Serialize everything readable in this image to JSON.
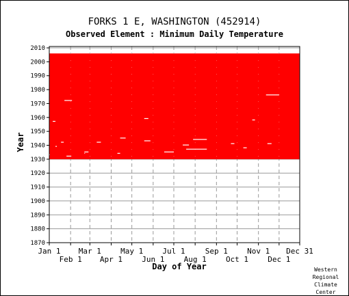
{
  "title": "FORKS 1 E, WASHINGTON   (452914)",
  "subtitle": "Observed Element : Minimum Daily Temperature",
  "credit": [
    "Western",
    "Regional",
    "Climate",
    "Center"
  ],
  "colors": {
    "data": "#ff0000",
    "grid": "#999999",
    "axis": "#000000"
  },
  "chart_data": {
    "type": "heatmap",
    "title": "FORKS 1 E, WASHINGTON   (452914)",
    "subtitle": "Observed Element : Minimum Daily Temperature",
    "xlabel": "Day of Year",
    "ylabel": "Year",
    "x_ticks_top_row": [
      "Jan 1",
      "Mar 1",
      "May 1",
      "Jul 1",
      "Sep 1",
      "Nov 1",
      "Dec 31"
    ],
    "x_ticks_bottom_row": [
      "Feb 1",
      "Apr 1",
      "Jun 1",
      "Aug 1",
      "Oct 1",
      "Dec 1"
    ],
    "x_tick_days": [
      1,
      32,
      60,
      91,
      121,
      152,
      182,
      213,
      244,
      274,
      305,
      335,
      365
    ],
    "x_range": [
      1,
      365
    ],
    "y_ticks": [
      1870,
      1880,
      1890,
      1900,
      1910,
      1920,
      1930,
      1940,
      1950,
      1960,
      1970,
      1980,
      1990,
      2000,
      2010
    ],
    "y_range": [
      1870,
      2011
    ],
    "grid": true,
    "observed_period": {
      "start_year": 1931,
      "end_year": 2005,
      "start_day": 1,
      "end_day": 365
    },
    "note": "Red cells indicate days with an observation; white gaps are missing days.",
    "missing_segments": [
      {
        "year": 1932,
        "day_start": 26,
        "day_end": 33
      },
      {
        "year": 1933,
        "day_start": 1,
        "day_end": 2
      },
      {
        "year": 1934,
        "day_start": 52,
        "day_end": 53
      },
      {
        "year": 1934,
        "day_start": 100,
        "day_end": 104
      },
      {
        "year": 1935,
        "day_start": 52,
        "day_end": 58
      },
      {
        "year": 1935,
        "day_start": 168,
        "day_end": 182
      },
      {
        "year": 1937,
        "day_start": 200,
        "day_end": 230
      },
      {
        "year": 1938,
        "day_start": 283,
        "day_end": 288
      },
      {
        "year": 1939,
        "day_start": 10,
        "day_end": 12
      },
      {
        "year": 1940,
        "day_start": 195,
        "day_end": 204
      },
      {
        "year": 1941,
        "day_start": 265,
        "day_end": 270
      },
      {
        "year": 1941,
        "day_start": 318,
        "day_end": 324
      },
      {
        "year": 1942,
        "day_start": 18,
        "day_end": 22
      },
      {
        "year": 1942,
        "day_start": 70,
        "day_end": 76
      },
      {
        "year": 1943,
        "day_start": 139,
        "day_end": 148
      },
      {
        "year": 1944,
        "day_start": 210,
        "day_end": 230
      },
      {
        "year": 1945,
        "day_start": 104,
        "day_end": 112
      },
      {
        "year": 1957,
        "day_start": 6,
        "day_end": 10
      },
      {
        "year": 1958,
        "day_start": 296,
        "day_end": 300
      },
      {
        "year": 1959,
        "day_start": 139,
        "day_end": 145
      },
      {
        "year": 1972,
        "day_start": 23,
        "day_end": 34
      },
      {
        "year": 1976,
        "day_start": 316,
        "day_end": 335
      }
    ]
  }
}
